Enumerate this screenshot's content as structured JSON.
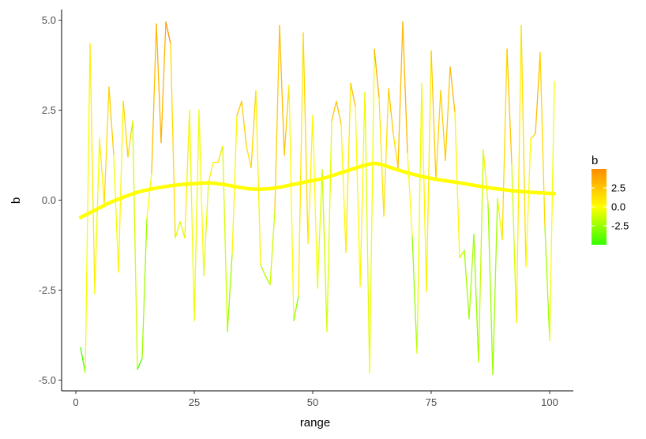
{
  "chart_data": {
    "type": "line",
    "xlabel": "range",
    "ylabel": "b",
    "xlim": [
      -3,
      105
    ],
    "ylim": [
      -5.3,
      5.3
    ],
    "x_ticks": [
      0,
      25,
      50,
      75,
      100
    ],
    "x_tick_labels": [
      "0",
      "25",
      "50",
      "75",
      "100"
    ],
    "y_ticks": [
      -5,
      -2.5,
      0,
      2.5,
      5
    ],
    "y_tick_labels": [
      "-5.0",
      "-2.5",
      "0.0",
      "2.5",
      "5.0"
    ],
    "grid": false,
    "legend": {
      "title": "b",
      "placement": "right",
      "type": "colorbar",
      "range": [
        -5,
        5
      ],
      "ticks": [
        2.5,
        0,
        -2.5
      ],
      "tick_labels": [
        "2.5",
        "0.0",
        "-2.5"
      ],
      "low_color": "#33ff00",
      "mid_color": "#ffff00",
      "high_color": "#ff8c00"
    },
    "series": [
      {
        "kind": "colored-line",
        "x": [
          1,
          2,
          3,
          4,
          5,
          6,
          7,
          8,
          9,
          10,
          11,
          12,
          13,
          14,
          15,
          16,
          17,
          18,
          19,
          20,
          21,
          22,
          23,
          24,
          25,
          26,
          27,
          28,
          29,
          30,
          31,
          32,
          33,
          34,
          35,
          36,
          37,
          38,
          39,
          40,
          41,
          42,
          43,
          44,
          45,
          46,
          47,
          48,
          49,
          50,
          51,
          52,
          53,
          54,
          55,
          56,
          57,
          58,
          59,
          60,
          61,
          62,
          63,
          64,
          65,
          66,
          67,
          68,
          69,
          70,
          71,
          72,
          73,
          74,
          75,
          76,
          77,
          78,
          79,
          80,
          81,
          82,
          83,
          84,
          85,
          86,
          87,
          88,
          89,
          90,
          91,
          92,
          93,
          94,
          95,
          96,
          97,
          98,
          99,
          100,
          101
        ],
        "y": [
          -4.1,
          -4.8,
          4.35,
          -2.6,
          1.7,
          -0.1,
          3.15,
          1.25,
          -2.0,
          2.75,
          1.2,
          2.2,
          -4.7,
          -4.4,
          -0.5,
          0.75,
          4.9,
          1.6,
          4.95,
          4.35,
          -1.05,
          -0.6,
          -1.05,
          2.5,
          -3.35,
          2.5,
          -2.1,
          0.5,
          1.05,
          1.05,
          1.5,
          -3.65,
          -1.5,
          2.35,
          2.75,
          1.5,
          0.9,
          3.05,
          -1.8,
          -2.1,
          -2.35,
          -0.3,
          4.85,
          1.25,
          3.2,
          -3.35,
          -2.65,
          4.65,
          -1.2,
          2.35,
          -2.45,
          0.85,
          -3.65,
          2.2,
          2.75,
          2.1,
          -1.45,
          3.25,
          2.6,
          -2.4,
          3.0,
          -4.8,
          4.2,
          2.85,
          -0.45,
          3.1,
          1.85,
          0.9,
          4.95,
          1.3,
          -1.0,
          -4.25,
          3.25,
          -2.55,
          4.15,
          0.55,
          3.05,
          1.1,
          3.7,
          2.45,
          -1.6,
          -1.4,
          -3.3,
          -0.95,
          -4.5,
          1.4,
          -0.1,
          -4.85,
          0.05,
          -1.1,
          4.2,
          1.0,
          -3.4,
          4.85,
          -1.85,
          1.7,
          1.85,
          4.1,
          -0.75,
          -3.9,
          3.3
        ]
      },
      {
        "kind": "smooth",
        "color": "#ffff00",
        "x": [
          1,
          4,
          7,
          10,
          13,
          16,
          19,
          22,
          25,
          28,
          31,
          34,
          37,
          40,
          43,
          46,
          49,
          52,
          55,
          58,
          61,
          63,
          65,
          67,
          70,
          73,
          76,
          79,
          82,
          85,
          88,
          91,
          94,
          97,
          101
        ],
        "y": [
          -0.48,
          -0.28,
          -0.08,
          0.08,
          0.22,
          0.31,
          0.38,
          0.43,
          0.46,
          0.48,
          0.44,
          0.37,
          0.31,
          0.31,
          0.36,
          0.44,
          0.52,
          0.6,
          0.72,
          0.85,
          0.97,
          1.02,
          0.97,
          0.88,
          0.76,
          0.66,
          0.58,
          0.52,
          0.46,
          0.39,
          0.33,
          0.28,
          0.24,
          0.21,
          0.18
        ]
      }
    ]
  }
}
